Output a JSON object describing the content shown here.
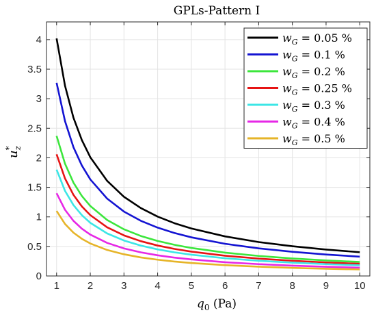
{
  "chart_data": {
    "type": "line",
    "title": "GPLs-Pattern I",
    "xlabel": "q0 (Pa)",
    "ylabel": "u*z",
    "xlim": [
      0.7,
      10.3
    ],
    "ylim": [
      0,
      4.3
    ],
    "xticks": [
      1,
      2,
      3,
      4,
      5,
      6,
      7,
      8,
      9,
      10
    ],
    "yticks": [
      0,
      0.5,
      1,
      1.5,
      2,
      2.5,
      3,
      3.5,
      4
    ],
    "xtick_labels": [
      "1",
      "2",
      "3",
      "4",
      "5",
      "6",
      "7",
      "8",
      "9",
      "10"
    ],
    "ytick_labels": [
      "0",
      "0.5",
      "1",
      "1.5",
      "2",
      "2.5",
      "3",
      "3.5",
      "4"
    ],
    "grid": true,
    "legend_position": "top-right",
    "x": [
      1,
      1.25,
      1.5,
      1.75,
      2,
      2.5,
      3,
      3.5,
      4,
      4.5,
      5,
      6,
      7,
      8,
      9,
      10
    ],
    "series": [
      {
        "name": "wG = 0.05 %",
        "label_base": "w",
        "label_sub": "G",
        "label_value": " = 0.05 %",
        "color": "#000000",
        "values": [
          4.02,
          3.22,
          2.68,
          2.3,
          2.01,
          1.61,
          1.34,
          1.15,
          1.005,
          0.893,
          0.804,
          0.67,
          0.574,
          0.503,
          0.447,
          0.402
        ]
      },
      {
        "name": "wG = 0.1 %",
        "label_base": "w",
        "label_sub": "G",
        "label_value": " = 0.1 %",
        "color": "#1414d2",
        "values": [
          3.27,
          2.62,
          2.18,
          1.87,
          1.635,
          1.31,
          1.09,
          0.934,
          0.818,
          0.727,
          0.654,
          0.545,
          0.467,
          0.409,
          0.363,
          0.327
        ]
      },
      {
        "name": "wG = 0.2 %",
        "label_base": "w",
        "label_sub": "G",
        "label_value": " = 0.2 %",
        "color": "#3ce63c",
        "values": [
          2.37,
          1.9,
          1.58,
          1.354,
          1.185,
          0.948,
          0.79,
          0.677,
          0.593,
          0.527,
          0.474,
          0.395,
          0.339,
          0.296,
          0.263,
          0.237
        ]
      },
      {
        "name": "wG = 0.25 %",
        "label_base": "w",
        "label_sub": "G",
        "label_value": " = 0.25 %",
        "color": "#e61414",
        "values": [
          2.06,
          1.65,
          1.373,
          1.177,
          1.03,
          0.824,
          0.687,
          0.589,
          0.515,
          0.458,
          0.412,
          0.343,
          0.294,
          0.258,
          0.229,
          0.206
        ]
      },
      {
        "name": "wG = 0.3 %",
        "label_base": "w",
        "label_sub": "G",
        "label_value": " = 0.3 %",
        "color": "#3ce6e6",
        "values": [
          1.8,
          1.44,
          1.2,
          1.029,
          0.9,
          0.72,
          0.6,
          0.514,
          0.45,
          0.4,
          0.36,
          0.3,
          0.257,
          0.225,
          0.2,
          0.18
        ]
      },
      {
        "name": "wG = 0.4 %",
        "label_base": "w",
        "label_sub": "G",
        "label_value": " = 0.4 %",
        "color": "#e628e6",
        "values": [
          1.4,
          1.12,
          0.933,
          0.8,
          0.7,
          0.56,
          0.467,
          0.4,
          0.35,
          0.311,
          0.28,
          0.233,
          0.2,
          0.175,
          0.156,
          0.14
        ]
      },
      {
        "name": "wG = 0.5 %",
        "label_base": "w",
        "label_sub": "G",
        "label_value": " = 0.5 %",
        "color": "#e6b428",
        "values": [
          1.1,
          0.88,
          0.733,
          0.629,
          0.55,
          0.44,
          0.367,
          0.314,
          0.275,
          0.244,
          0.22,
          0.183,
          0.157,
          0.1375,
          0.122,
          0.11
        ]
      }
    ]
  }
}
